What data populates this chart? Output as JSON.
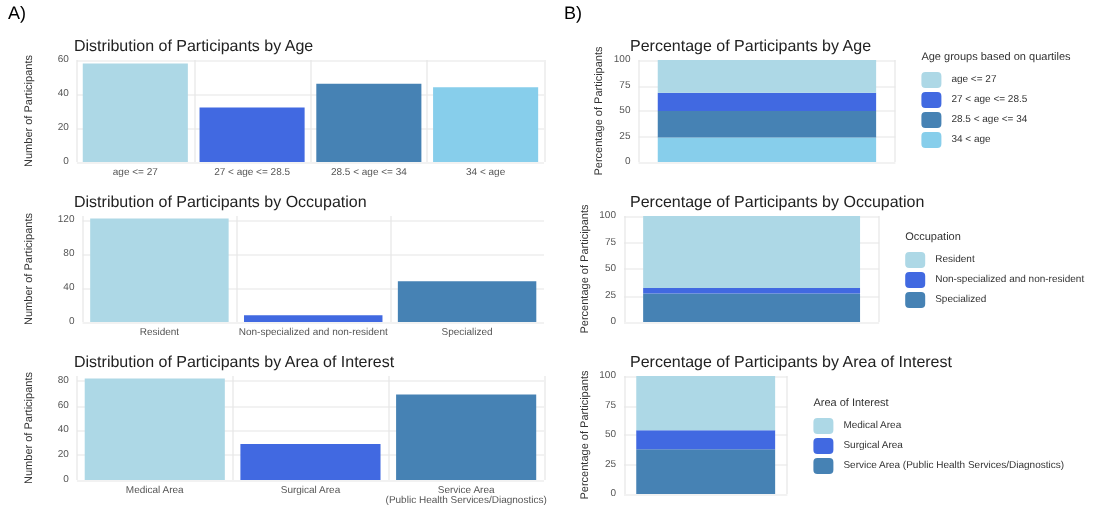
{
  "chart_data": [
    {
      "type": "bar",
      "title": "Distribution of Participants by Age",
      "annotations": [
        "A)"
      ],
      "ylabel": "Number of Participants",
      "categories": [
        "age <= 27",
        "27 < age <= 28.5",
        "28.5 < age <= 34",
        "34 < age"
      ],
      "values": [
        58,
        32,
        46,
        44
      ],
      "colors": [
        "#add8e6",
        "#4169e1",
        "#4682b4",
        "#87ceeb"
      ],
      "ylim": [
        0,
        60
      ],
      "yticks": [
        0,
        20,
        40,
        60
      ],
      "grid": true,
      "legend": false
    },
    {
      "type": "bar",
      "title": "Distribution of Participants by Occupation",
      "ylabel": "Number of Participants",
      "categories": [
        "Resident",
        "Non-specialized and non-resident",
        "Specialized"
      ],
      "values": [
        122,
        8,
        48
      ],
      "colors": [
        "#add8e6",
        "#4169e1",
        "#4682b4"
      ],
      "ylim": [
        0,
        125
      ],
      "yticks": [
        0,
        40,
        80,
        120
      ],
      "grid": true,
      "legend": false
    },
    {
      "type": "bar",
      "title": "Distribution of Participants by Area of Interest",
      "ylabel": "Number of Participants",
      "categories": [
        "Medical Area",
        "Surgical Area",
        "Service Area\n(Public Health Services/Diagnostics)"
      ],
      "values": [
        82,
        29,
        69
      ],
      "colors": [
        "#add8e6",
        "#4169e1",
        "#4682b4"
      ],
      "ylim": [
        0,
        84
      ],
      "yticks": [
        0,
        20,
        40,
        60,
        80
      ],
      "grid": true,
      "legend": false
    },
    {
      "type": "bar",
      "title": "Percentage of Participants by Age",
      "annotations": [
        "B)"
      ],
      "ylabel": "Percentage of Participants",
      "legend_title": "Age groups based on quartiles",
      "categories": [
        null
      ],
      "stacked": true,
      "ylim": [
        0,
        100
      ],
      "yticks": [
        0,
        25,
        50,
        75,
        100
      ],
      "grid": true,
      "legend": "right",
      "series": [
        {
          "name": "34 < age",
          "color": "#87ceeb",
          "values": [
            24
          ]
        },
        {
          "name": "28.5 < age <= 34",
          "color": "#4682b4",
          "values": [
            26
          ]
        },
        {
          "name": "27 < age <= 28.5",
          "color": "#4169e1",
          "values": [
            18
          ]
        },
        {
          "name": "age <= 27",
          "color": "#add8e6",
          "values": [
            32
          ]
        }
      ]
    },
    {
      "type": "bar",
      "title": "Percentage of Participants by Occupation",
      "ylabel": "Percentage of Participants",
      "legend_title": "Occupation",
      "categories": [
        null
      ],
      "stacked": true,
      "ylim": [
        0,
        100
      ],
      "yticks": [
        0,
        25,
        50,
        75,
        100
      ],
      "grid": true,
      "legend": "right",
      "series": [
        {
          "name": "Specialized",
          "color": "#4682b4",
          "values": [
            27
          ]
        },
        {
          "name": "Non-specialized and non-resident",
          "color": "#4169e1",
          "values": [
            5
          ]
        },
        {
          "name": "Resident",
          "color": "#add8e6",
          "values": [
            68
          ]
        }
      ]
    },
    {
      "type": "bar",
      "title": "Percentage of Participants by Area of Interest",
      "ylabel": "Percentage of Participants",
      "legend_title": "Area of Interest",
      "categories": [
        null
      ],
      "stacked": true,
      "ylim": [
        0,
        100
      ],
      "yticks": [
        0,
        25,
        50,
        75,
        100
      ],
      "grid": true,
      "legend": "right",
      "series": [
        {
          "name": "Service Area (Public Health Services/Diagnostics)",
          "color": "#4682b4",
          "values": [
            38
          ]
        },
        {
          "name": "Surgical Area",
          "color": "#4169e1",
          "values": [
            16
          ]
        },
        {
          "name": "Medical Area",
          "color": "#add8e6",
          "values": [
            46
          ]
        }
      ]
    }
  ]
}
